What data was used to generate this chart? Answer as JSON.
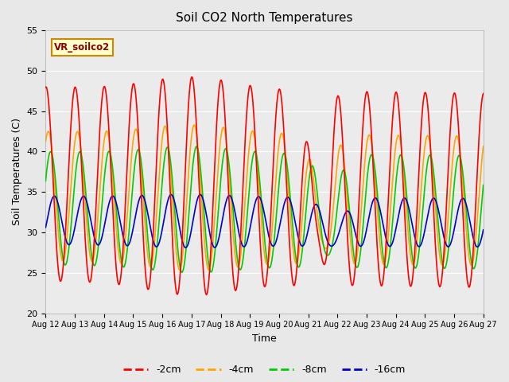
{
  "title": "Soil CO2 North Temperatures",
  "xlabel": "Time",
  "ylabel": "Soil Temperatures (C)",
  "ylim": [
    20,
    55
  ],
  "bg_color": "#e8e8e8",
  "plot_bg_color": "#ebebeb",
  "colors": {
    "-2cm": "#ff0000",
    "-4cm": "#ffa500",
    "-8cm": "#00cc00",
    "-16cm": "#0000cc"
  },
  "legend_label": "VR_soilco2",
  "x_tick_labels": [
    "Aug 12",
    "Aug 13",
    "Aug 14",
    "Aug 15",
    "Aug 16",
    "Aug 17",
    "Aug 18",
    "Aug 19",
    "Aug 20",
    "Aug 21",
    "Aug 22",
    "Aug 23",
    "Aug 24",
    "Aug 25",
    "Aug 26",
    "Aug 27"
  ]
}
